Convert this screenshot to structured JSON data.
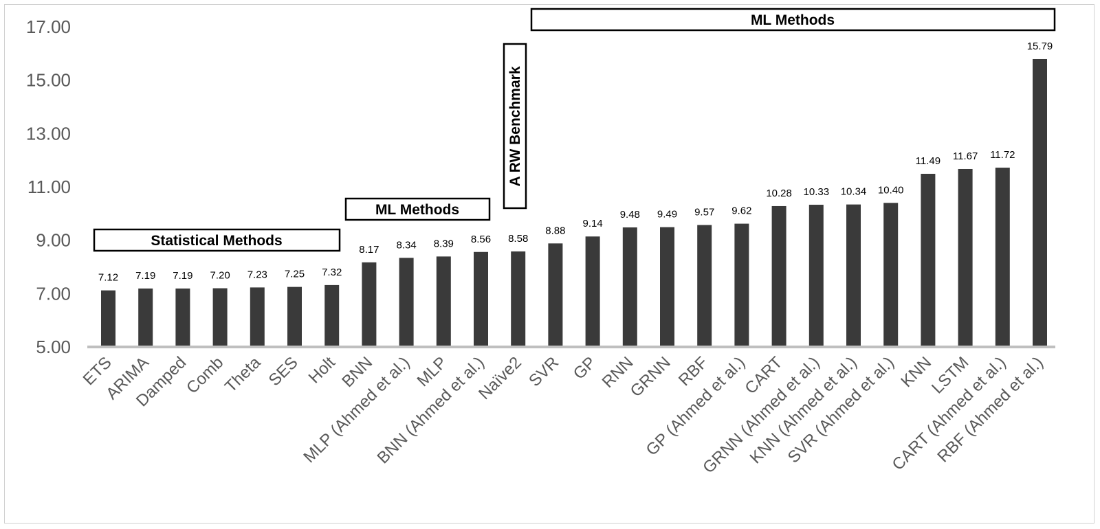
{
  "chart_data": {
    "type": "bar",
    "title": "",
    "xlabel": "",
    "ylabel": "",
    "ylim": [
      5,
      17
    ],
    "yticks": [
      "5.00",
      "7.00",
      "9.00",
      "11.00",
      "13.00",
      "15.00",
      "17.00"
    ],
    "grid": false,
    "bar_color": "#3a3a3a",
    "axis_color": "#bfbfbf",
    "categories": [
      "ETS",
      "ARIMA",
      "Damped",
      "Comb",
      "Theta",
      "SES",
      "Holt",
      "BNN",
      "MLP (Ahmed et al.)",
      "MLP",
      "BNN  (Ahmed et al.)",
      "Naïve2",
      "SVR",
      "GP",
      "RNN",
      "GRNN",
      "RBF",
      "GP  (Ahmed et al.)",
      "CART",
      "GRNN  (Ahmed et al.)",
      "KNN  (Ahmed et al.)",
      "SVR  (Ahmed et al.)",
      "KNN",
      "LSTM",
      "CART  (Ahmed et al.)",
      "RBF  (Ahmed et al.)"
    ],
    "values": [
      7.12,
      7.19,
      7.19,
      7.2,
      7.23,
      7.25,
      7.32,
      8.17,
      8.34,
      8.39,
      8.56,
      8.58,
      8.88,
      9.14,
      9.48,
      9.49,
      9.57,
      9.62,
      10.28,
      10.33,
      10.34,
      10.4,
      11.49,
      11.67,
      11.72,
      15.79
    ],
    "value_labels": [
      "7.12",
      "7.19",
      "7.19",
      "7.20",
      "7.23",
      "7.25",
      "7.32",
      "8.17",
      "8.34",
      "8.39",
      "8.56",
      "8.58",
      "8.88",
      "9.14",
      "9.48",
      "9.49",
      "9.57",
      "9.62",
      "10.28",
      "10.33",
      "10.34",
      "10.40",
      "11.49",
      "11.67",
      "11.72",
      "15.79"
    ],
    "annotations": {
      "statistical": "Statistical Methods",
      "ml_first": "ML Methods",
      "benchmark": "A RW Benchmark",
      "ml_second": "ML Methods"
    }
  }
}
